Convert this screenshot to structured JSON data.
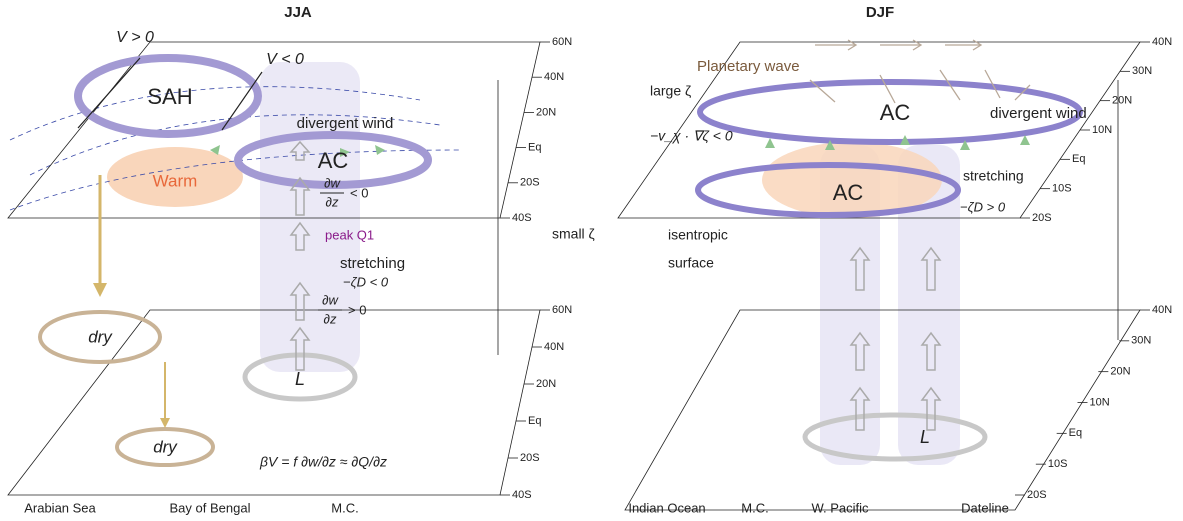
{
  "left": {
    "title": "JJA",
    "labels": {
      "v_pos": "V > 0",
      "v_neg": "V < 0",
      "sah": "SAH",
      "divergent_wind": "divergent wind",
      "ac": "AC",
      "warm": "Warm",
      "dwdz_top_num": "∂w",
      "dwdz_top_den": "∂z",
      "dwdz_top_rel": "< 0",
      "peak_q1": "peak Q1",
      "stretching": "stretching",
      "stretching_eq": "−ζD < 0",
      "dwdz_bot_num": "∂w",
      "dwdz_bot_den": "∂z",
      "dwdz_bot_rel": "> 0",
      "dry_1": "dry",
      "dry_2": "dry",
      "low": "L",
      "balance": "βV = f ∂w/∂z ≈ ∂Q/∂z"
    },
    "top_axis": [
      "60N",
      "40N",
      "20N",
      "Eq",
      "20S",
      "40S"
    ],
    "bottom_axis": [
      "60N",
      "40N",
      "20N",
      "Eq",
      "20S",
      "40S"
    ],
    "x_labels": [
      "Arabian Sea",
      "Bay of Bengal",
      "M.C."
    ]
  },
  "right": {
    "title": "DJF",
    "labels": {
      "planetary_wave": "Planetary wave",
      "large_zeta": "large ζ",
      "ac_upper": "AC",
      "divergent_wind": "divergent wind",
      "advection": "−v_χ · ∇ζ < 0",
      "ac_lower": "AC",
      "stretching": "stretching",
      "stretching_eq": "−ζD > 0",
      "small_zeta": "small ζ",
      "isentropic": "isentropic",
      "surface": "surface",
      "low": "L"
    },
    "top_axis": [
      "40N",
      "30N",
      "20N",
      "10N",
      "Eq",
      "10S",
      "20S"
    ],
    "bottom_axis": [
      "40N",
      "30N",
      "20N",
      "10N",
      "Eq",
      "10S",
      "20S"
    ],
    "x_labels": [
      "Indian Ocean",
      "M.C.",
      "W. Pacific",
      "Dateline"
    ]
  }
}
